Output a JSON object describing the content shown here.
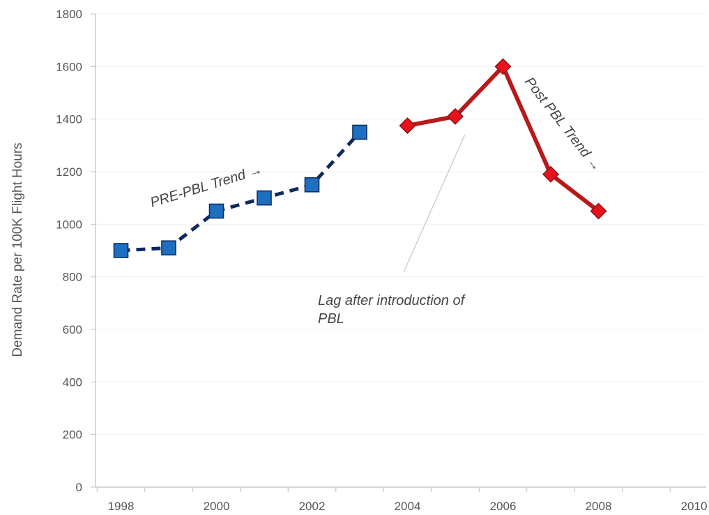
{
  "chart_data": {
    "type": "line",
    "title": "",
    "xlabel": "",
    "ylabel": "Demand Rate per 100K Flight Hours",
    "xlim": [
      1997.5,
      2010.5
    ],
    "ylim": [
      0,
      1800
    ],
    "x_ticks": [
      1998,
      2000,
      2002,
      2004,
      2006,
      2008,
      2010
    ],
    "y_ticks": [
      0,
      200,
      400,
      600,
      800,
      1000,
      1200,
      1400,
      1600,
      1800
    ],
    "grid": true,
    "legend": "none",
    "series": [
      {
        "color": "#1f6fc0",
        "line_color": "#0d2a5c",
        "line_style": "dashed",
        "marker": "square",
        "x": [
          1998,
          1999,
          2000,
          2001,
          2002,
          2003
        ],
        "y": [
          900,
          910,
          1050,
          1100,
          1150,
          1350
        ]
      },
      {
        "color": "#e8121f",
        "line_color": "#b81a1a",
        "line_style": "solid",
        "marker": "diamond",
        "x": [
          2004,
          2005,
          2006,
          2007,
          2008
        ],
        "y": [
          1375,
          1410,
          1600,
          1190,
          1050
        ]
      }
    ],
    "annotations": {
      "pre_trend": "PRE-PBL Trend →",
      "post_trend": "Post PBL Trend →",
      "lag_line1": "Lag after introduction of",
      "lag_line2": "PBL"
    }
  }
}
